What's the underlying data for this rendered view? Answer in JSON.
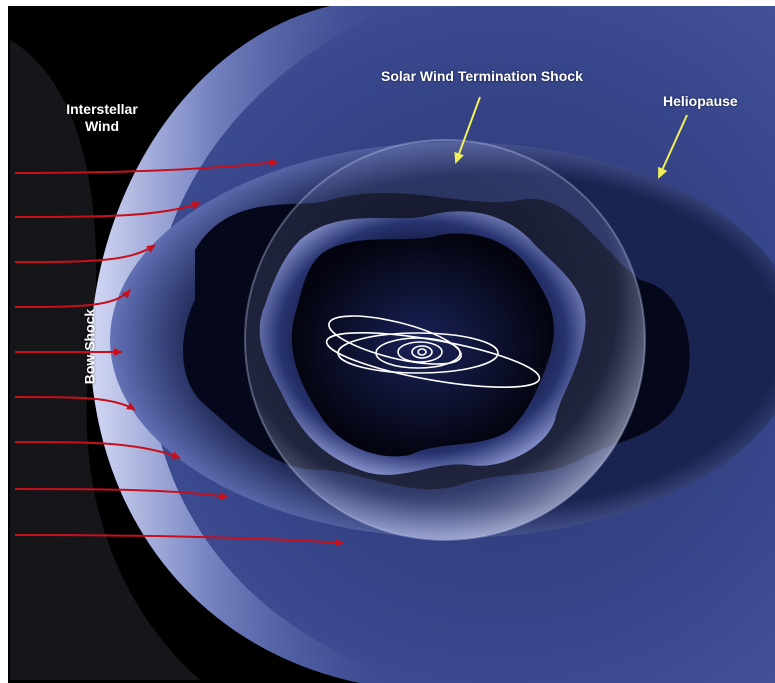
{
  "labels": {
    "interstellar_wind_line1": "Interstellar",
    "interstellar_wind_line2": "Wind",
    "termination_shock": "Solar Wind Termination Shock",
    "heliopause": "Heliopause",
    "bow_shock": "Bow Shock"
  },
  "colors": {
    "space": "#000000",
    "heliosheath": "#3a4a8a",
    "bow_shock_glow": "#c8d0f0",
    "wind_arrows": "#c8101c",
    "pointer_arrows": "#f2f05a",
    "orbits": "#ffffff"
  },
  "wind_arrow_count": 9,
  "orbit_count": 7
}
